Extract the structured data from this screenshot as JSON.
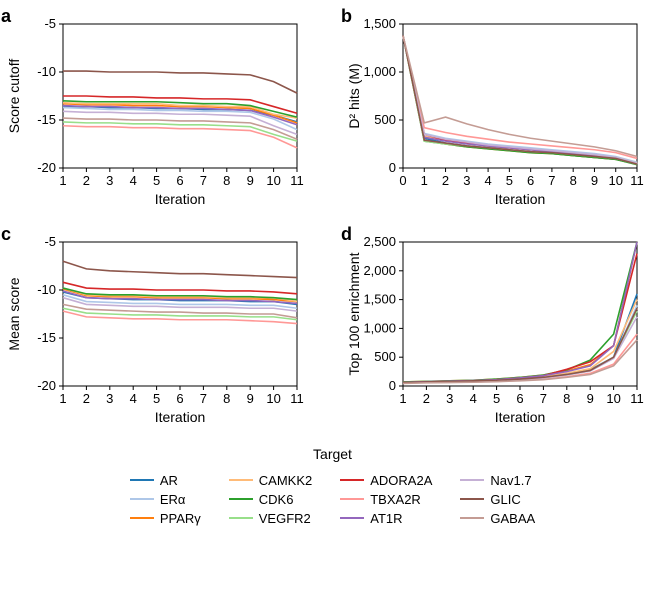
{
  "figure": {
    "background_color": "#ffffff",
    "panel_label_fontsize": 18,
    "axis_label_fontsize": 14,
    "tick_fontsize": 13
  },
  "targets": [
    {
      "name": "AR",
      "color": "#1f77b4"
    },
    {
      "name": "ERα",
      "color": "#aec7e8"
    },
    {
      "name": "PPARγ",
      "color": "#ff7f0e"
    },
    {
      "name": "CAMKK2",
      "color": "#ffbb78"
    },
    {
      "name": "CDK6",
      "color": "#2ca02c"
    },
    {
      "name": "VEGFR2",
      "color": "#98df8a"
    },
    {
      "name": "ADORA2A",
      "color": "#d62728"
    },
    {
      "name": "TBXA2R",
      "color": "#ff9896"
    },
    {
      "name": "AT1R",
      "color": "#9467bd"
    },
    {
      "name": "Nav1.7",
      "color": "#c5b0d5"
    },
    {
      "name": "GLIC",
      "color": "#8c564b"
    },
    {
      "name": "GABAA",
      "color": "#c49c94"
    }
  ],
  "panels": {
    "a": {
      "label": "a",
      "xlabel": "Iteration",
      "ylabel": "Score cutoff",
      "xlim": [
        1,
        11
      ],
      "xtick_step": 1,
      "ylim": [
        -20,
        -5
      ],
      "ytick_step": 5,
      "series": {
        "AR": [
          -13.6,
          -13.6,
          -13.7,
          -13.7,
          -13.8,
          -13.8,
          -13.9,
          -13.9,
          -14.0,
          -14.5,
          -15.2
        ],
        "ERα": [
          -13.7,
          -13.8,
          -13.9,
          -13.9,
          -14.0,
          -14.0,
          -14.1,
          -14.1,
          -14.2,
          -14.9,
          -16.0
        ],
        "PPARγ": [
          -13.3,
          -13.4,
          -13.4,
          -13.5,
          -13.5,
          -13.6,
          -13.6,
          -13.7,
          -13.8,
          -14.5,
          -15.3
        ],
        "CAMKK2": [
          -13.2,
          -13.3,
          -13.3,
          -13.3,
          -13.3,
          -13.5,
          -13.5,
          -13.6,
          -13.6,
          -14.4,
          -14.8
        ],
        "CDK6": [
          -13.0,
          -13.1,
          -13.1,
          -13.1,
          -13.1,
          -13.2,
          -13.3,
          -13.3,
          -13.5,
          -14.1,
          -14.7
        ],
        "VEGFR2": [
          -15.2,
          -15.3,
          -15.3,
          -15.4,
          -15.4,
          -15.5,
          -15.5,
          -15.6,
          -15.7,
          -16.5,
          -17.2
        ],
        "ADORA2A": [
          -12.5,
          -12.5,
          -12.6,
          -12.6,
          -12.7,
          -12.7,
          -12.8,
          -12.8,
          -12.9,
          -13.6,
          -14.3
        ],
        "TBXA2R": [
          -15.6,
          -15.7,
          -15.7,
          -15.8,
          -15.8,
          -15.9,
          -15.9,
          -16.0,
          -16.1,
          -16.8,
          -17.9
        ],
        "AT1R": [
          -13.5,
          -13.6,
          -13.6,
          -13.7,
          -13.7,
          -13.8,
          -13.8,
          -13.9,
          -14.0,
          -14.7,
          -15.5
        ],
        "Nav1.7": [
          -14.1,
          -14.2,
          -14.2,
          -14.3,
          -14.3,
          -14.4,
          -14.4,
          -14.5,
          -14.6,
          -15.6,
          -16.5
        ],
        "GLIC": [
          -9.9,
          -9.9,
          -10.0,
          -10.0,
          -10.0,
          -10.1,
          -10.1,
          -10.2,
          -10.3,
          -11.0,
          -12.2
        ],
        "GABAA": [
          -14.8,
          -14.9,
          -14.9,
          -15.0,
          -15.0,
          -15.1,
          -15.1,
          -15.2,
          -15.3,
          -16.0,
          -17.0
        ]
      }
    },
    "b": {
      "label": "b",
      "xlabel": "Iteration",
      "ylabel": "D² hits (M)",
      "xlim": [
        0,
        11
      ],
      "xtick_step": 1,
      "ylim": [
        0,
        1500
      ],
      "ytick_step": 500,
      "series": {
        "AR": [
          1380,
          310,
          260,
          230,
          210,
          190,
          170,
          150,
          130,
          110,
          90,
          40
        ],
        "ERα": [
          1380,
          360,
          310,
          280,
          250,
          230,
          210,
          190,
          170,
          150,
          120,
          60
        ],
        "PPARγ": [
          1380,
          290,
          250,
          220,
          200,
          180,
          160,
          150,
          130,
          110,
          90,
          40
        ],
        "CAMKK2": [
          1380,
          330,
          290,
          260,
          230,
          210,
          190,
          170,
          150,
          130,
          110,
          50
        ],
        "CDK6": [
          1380,
          280,
          250,
          220,
          200,
          180,
          160,
          150,
          130,
          110,
          90,
          35
        ],
        "VEGFR2": [
          1380,
          280,
          250,
          230,
          210,
          190,
          170,
          160,
          140,
          120,
          100,
          40
        ],
        "ADORA2A": [
          1380,
          350,
          290,
          260,
          230,
          210,
          190,
          170,
          150,
          130,
          100,
          45
        ],
        "TBXA2R": [
          1380,
          420,
          370,
          330,
          300,
          270,
          250,
          230,
          210,
          190,
          160,
          100
        ],
        "AT1R": [
          1380,
          320,
          280,
          250,
          230,
          210,
          190,
          170,
          150,
          130,
          100,
          45
        ],
        "Nav1.7": [
          1380,
          350,
          300,
          270,
          240,
          220,
          200,
          180,
          160,
          140,
          110,
          50
        ],
        "GLIC": [
          1380,
          290,
          260,
          230,
          210,
          190,
          170,
          160,
          140,
          120,
          100,
          40
        ],
        "GABAA": [
          1380,
          470,
          530,
          460,
          400,
          350,
          310,
          280,
          250,
          220,
          180,
          120
        ]
      }
    },
    "c": {
      "label": "c",
      "xlabel": "Iteration",
      "ylabel": "Mean score",
      "xlim": [
        1,
        11
      ],
      "xtick_step": 1,
      "ylim": [
        -20,
        -5
      ],
      "ytick_step": 5,
      "series": {
        "AR": [
          -10.2,
          -10.8,
          -10.9,
          -11.0,
          -11.0,
          -11.1,
          -11.1,
          -11.1,
          -11.2,
          -11.2,
          -11.5
        ],
        "ERα": [
          -10.5,
          -11.2,
          -11.3,
          -11.4,
          -11.4,
          -11.5,
          -11.5,
          -11.5,
          -11.6,
          -11.6,
          -11.9
        ],
        "PPARγ": [
          -9.9,
          -10.6,
          -10.7,
          -10.7,
          -10.8,
          -10.8,
          -10.8,
          -10.9,
          -10.9,
          -11.0,
          -11.2
        ],
        "CAMKK2": [
          -9.8,
          -10.5,
          -10.6,
          -10.6,
          -10.7,
          -10.7,
          -10.7,
          -10.8,
          -10.8,
          -10.8,
          -11.2
        ],
        "CDK6": [
          -9.8,
          -10.4,
          -10.5,
          -10.5,
          -10.6,
          -10.6,
          -10.6,
          -10.7,
          -10.7,
          -10.8,
          -11.0
        ],
        "VEGFR2": [
          -11.9,
          -12.4,
          -12.5,
          -12.6,
          -12.6,
          -12.7,
          -12.7,
          -12.7,
          -12.8,
          -12.8,
          -13.1
        ],
        "ADORA2A": [
          -9.2,
          -9.8,
          -9.9,
          -9.9,
          -10.0,
          -10.0,
          -10.0,
          -10.1,
          -10.1,
          -10.2,
          -10.4
        ],
        "TBXA2R": [
          -12.2,
          -12.8,
          -12.9,
          -13.0,
          -13.0,
          -13.1,
          -13.1,
          -13.1,
          -13.2,
          -13.3,
          -13.5
        ],
        "AT1R": [
          -10.1,
          -10.8,
          -10.9,
          -10.9,
          -11.0,
          -11.0,
          -11.0,
          -11.1,
          -11.1,
          -11.2,
          -11.4
        ],
        "Nav1.7": [
          -10.8,
          -11.5,
          -11.6,
          -11.7,
          -11.7,
          -11.8,
          -11.8,
          -11.8,
          -11.9,
          -11.9,
          -12.2
        ],
        "GLIC": [
          -7.0,
          -7.8,
          -8.0,
          -8.1,
          -8.2,
          -8.3,
          -8.3,
          -8.4,
          -8.5,
          -8.6,
          -8.7
        ],
        "GABAA": [
          -11.5,
          -12.0,
          -12.1,
          -12.2,
          -12.3,
          -12.3,
          -12.4,
          -12.4,
          -12.5,
          -12.5,
          -12.9
        ]
      }
    },
    "d": {
      "label": "d",
      "xlabel": "Iteration",
      "ylabel": "Top 100 enrichment",
      "xlim": [
        1,
        11
      ],
      "xtick_step": 1,
      "ylim": [
        0,
        2500
      ],
      "ytick_step": 500,
      "series": {
        "AR": [
          60,
          70,
          80,
          90,
          100,
          120,
          150,
          200,
          280,
          500,
          1600
        ],
        "ERα": [
          50,
          60,
          70,
          80,
          90,
          110,
          140,
          190,
          260,
          480,
          1400
        ],
        "PPARγ": [
          70,
          80,
          90,
          100,
          120,
          150,
          190,
          260,
          370,
          700,
          2500
        ],
        "CAMKK2": [
          60,
          70,
          80,
          90,
          100,
          130,
          160,
          220,
          300,
          600,
          1500
        ],
        "CDK6": [
          70,
          80,
          90,
          100,
          120,
          150,
          190,
          280,
          450,
          900,
          2500
        ],
        "VEGFR2": [
          60,
          70,
          80,
          90,
          100,
          120,
          150,
          200,
          270,
          500,
          1300
        ],
        "ADORA2A": [
          60,
          70,
          80,
          90,
          110,
          140,
          180,
          290,
          420,
          700,
          2300
        ],
        "TBXA2R": [
          50,
          60,
          65,
          70,
          80,
          95,
          115,
          160,
          220,
          380,
          900
        ],
        "AT1R": [
          65,
          75,
          85,
          95,
          110,
          140,
          180,
          250,
          350,
          700,
          2500
        ],
        "Nav1.7": [
          55,
          65,
          75,
          85,
          95,
          115,
          145,
          195,
          260,
          480,
          1200
        ],
        "GLIC": [
          60,
          70,
          80,
          90,
          100,
          120,
          150,
          200,
          270,
          500,
          1350
        ],
        "GABAA": [
          45,
          55,
          60,
          65,
          75,
          90,
          110,
          150,
          200,
          350,
          800
        ]
      }
    }
  },
  "legend": {
    "title": "Target"
  }
}
